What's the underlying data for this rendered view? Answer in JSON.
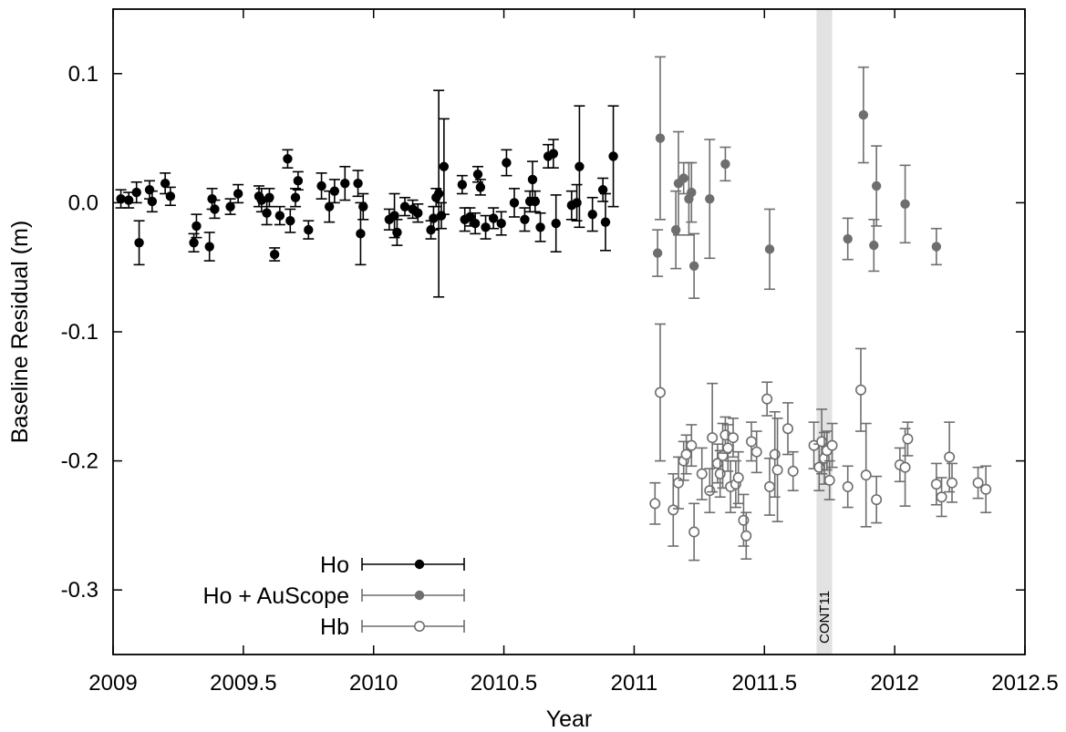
{
  "chart_data": {
    "type": "scatter",
    "xlabel": "Year",
    "ylabel": "Baseline Residual (m)",
    "xlim": [
      2009,
      2012.5
    ],
    "ylim": [
      -0.35,
      0.15
    ],
    "x_ticks": [
      2009,
      2009.5,
      2010,
      2010.5,
      2011,
      2011.5,
      2012,
      2012.5
    ],
    "x_tick_labels": [
      "2009",
      "2009.5",
      "2010",
      "2010.5",
      "2011",
      "2011.5",
      "2012",
      "2012.5"
    ],
    "y_ticks": [
      0.1,
      0.0,
      -0.1,
      -0.2,
      -0.3
    ],
    "y_tick_labels": [
      "0.1",
      "0.0",
      "-0.1",
      "-0.2",
      "-0.3"
    ],
    "legend_position": "bottom-left",
    "annotation": {
      "label": "CONT11",
      "x_range": [
        2011.7,
        2011.76
      ],
      "color": "#e2e2e2"
    },
    "series": [
      {
        "name": "Ho",
        "marker": "filled-circle",
        "color": "#000000",
        "points": [
          [
            2009.03,
            0.003,
            0.007
          ],
          [
            2009.06,
            0.002,
            0.006
          ],
          [
            2009.09,
            0.008,
            0.008
          ],
          [
            2009.1,
            -0.031,
            0.017
          ],
          [
            2009.14,
            0.01,
            0.007
          ],
          [
            2009.15,
            0.001,
            0.008
          ],
          [
            2009.2,
            0.015,
            0.008
          ],
          [
            2009.22,
            0.005,
            0.007
          ],
          [
            2009.31,
            -0.031,
            0.007
          ],
          [
            2009.32,
            -0.018,
            0.009
          ],
          [
            2009.37,
            -0.034,
            0.011
          ],
          [
            2009.38,
            0.003,
            0.008
          ],
          [
            2009.39,
            -0.005,
            0.007
          ],
          [
            2009.45,
            -0.003,
            0.006
          ],
          [
            2009.48,
            0.007,
            0.007
          ],
          [
            2009.56,
            0.005,
            0.008
          ],
          [
            2009.57,
            0.002,
            0.009
          ],
          [
            2009.59,
            -0.008,
            0.009
          ],
          [
            2009.6,
            0.004,
            0.007
          ],
          [
            2009.62,
            -0.04,
            0.005
          ],
          [
            2009.64,
            -0.01,
            0.007
          ],
          [
            2009.67,
            0.034,
            0.007
          ],
          [
            2009.68,
            -0.014,
            0.009
          ],
          [
            2009.7,
            0.004,
            0.007
          ],
          [
            2009.71,
            0.017,
            0.007
          ],
          [
            2009.75,
            -0.021,
            0.007
          ],
          [
            2009.8,
            0.013,
            0.01
          ],
          [
            2009.83,
            -0.003,
            0.012
          ],
          [
            2009.85,
            0.009,
            0.009
          ],
          [
            2009.89,
            0.015,
            0.013
          ],
          [
            2009.94,
            0.015,
            0.01
          ],
          [
            2009.95,
            -0.024,
            0.024
          ],
          [
            2009.96,
            -0.003,
            0.01
          ],
          [
            2010.06,
            -0.013,
            0.008
          ],
          [
            2010.08,
            -0.01,
            0.017
          ],
          [
            2010.09,
            -0.023,
            0.01
          ],
          [
            2010.12,
            -0.003,
            0.007
          ],
          [
            2010.15,
            -0.005,
            0.007
          ],
          [
            2010.17,
            -0.008,
            0.007
          ],
          [
            2010.22,
            -0.021,
            0.007
          ],
          [
            2010.23,
            -0.012,
            0.009
          ],
          [
            2010.24,
            0.004,
            0.007
          ],
          [
            2010.25,
            0.007,
            0.08
          ],
          [
            2010.26,
            -0.01,
            0.01
          ],
          [
            2010.27,
            0.028,
            0.037
          ],
          [
            2010.34,
            0.014,
            0.007
          ],
          [
            2010.35,
            -0.013,
            0.009
          ],
          [
            2010.37,
            -0.011,
            0.007
          ],
          [
            2010.39,
            -0.016,
            0.008
          ],
          [
            2010.4,
            0.022,
            0.006
          ],
          [
            2010.41,
            0.012,
            0.006
          ],
          [
            2010.43,
            -0.019,
            0.009
          ],
          [
            2010.46,
            -0.012,
            0.008
          ],
          [
            2010.49,
            -0.016,
            0.009
          ],
          [
            2010.51,
            0.031,
            0.01
          ],
          [
            2010.54,
            0.0,
            0.011
          ],
          [
            2010.58,
            -0.013,
            0.009
          ],
          [
            2010.6,
            0.001,
            0.008
          ],
          [
            2010.61,
            0.018,
            0.014
          ],
          [
            2010.62,
            0.001,
            0.008
          ],
          [
            2010.64,
            -0.019,
            0.011
          ],
          [
            2010.67,
            0.036,
            0.009
          ],
          [
            2010.69,
            0.038,
            0.011
          ],
          [
            2010.7,
            -0.016,
            0.022
          ],
          [
            2010.76,
            -0.002,
            0.011
          ],
          [
            2010.78,
            0.0,
            0.014
          ],
          [
            2010.79,
            0.028,
            0.047
          ],
          [
            2010.84,
            -0.009,
            0.013
          ],
          [
            2010.88,
            0.01,
            0.009
          ],
          [
            2010.89,
            -0.015,
            0.022
          ],
          [
            2010.92,
            0.036,
            0.039
          ]
        ]
      },
      {
        "name": "Ho + AuScope",
        "marker": "filled-circle",
        "color": "#6e6e6e",
        "points": [
          [
            2011.09,
            -0.039,
            0.018
          ],
          [
            2011.1,
            0.05,
            0.063
          ],
          [
            2011.16,
            -0.021,
            0.03
          ],
          [
            2011.17,
            0.015,
            0.04
          ],
          [
            2011.19,
            0.019,
            0.012
          ],
          [
            2011.21,
            0.003,
            0.028
          ],
          [
            2011.22,
            0.008,
            0.023
          ],
          [
            2011.23,
            -0.049,
            0.025
          ],
          [
            2011.29,
            0.003,
            0.046
          ],
          [
            2011.35,
            0.03,
            0.013
          ],
          [
            2011.52,
            -0.036,
            0.031
          ],
          [
            2011.82,
            -0.028,
            0.016
          ],
          [
            2011.88,
            0.068,
            0.037
          ],
          [
            2011.92,
            -0.033,
            0.02
          ],
          [
            2011.93,
            0.013,
            0.031
          ],
          [
            2012.04,
            -0.001,
            0.03
          ],
          [
            2012.16,
            -0.034,
            0.014
          ]
        ]
      },
      {
        "name": "Hb",
        "marker": "open-circle",
        "color": "#6e6e6e",
        "points": [
          [
            2011.08,
            -0.233,
            0.016
          ],
          [
            2011.1,
            -0.147,
            0.053
          ],
          [
            2011.15,
            -0.238,
            0.028
          ],
          [
            2011.17,
            -0.217,
            0.02
          ],
          [
            2011.19,
            -0.2,
            0.015
          ],
          [
            2011.2,
            -0.195,
            0.015
          ],
          [
            2011.22,
            -0.188,
            0.016
          ],
          [
            2011.23,
            -0.255,
            0.022
          ],
          [
            2011.26,
            -0.21,
            0.02
          ],
          [
            2011.29,
            -0.223,
            0.017
          ],
          [
            2011.3,
            -0.182,
            0.042
          ],
          [
            2011.32,
            -0.202,
            0.015
          ],
          [
            2011.33,
            -0.21,
            0.018
          ],
          [
            2011.34,
            -0.196,
            0.025
          ],
          [
            2011.35,
            -0.18,
            0.014
          ],
          [
            2011.36,
            -0.19,
            0.018
          ],
          [
            2011.37,
            -0.22,
            0.02
          ],
          [
            2011.38,
            -0.182,
            0.015
          ],
          [
            2011.39,
            -0.218,
            0.018
          ],
          [
            2011.4,
            -0.213,
            0.02
          ],
          [
            2011.42,
            -0.246,
            0.02
          ],
          [
            2011.43,
            -0.258,
            0.018
          ],
          [
            2011.45,
            -0.185,
            0.015
          ],
          [
            2011.47,
            -0.193,
            0.016
          ],
          [
            2011.51,
            -0.152,
            0.013
          ],
          [
            2011.52,
            -0.22,
            0.022
          ],
          [
            2011.54,
            -0.195,
            0.033
          ],
          [
            2011.55,
            -0.207,
            0.04
          ],
          [
            2011.59,
            -0.175,
            0.02
          ],
          [
            2011.61,
            -0.208,
            0.015
          ],
          [
            2011.69,
            -0.188,
            0.018
          ],
          [
            2011.71,
            -0.205,
            0.018
          ],
          [
            2011.72,
            -0.185,
            0.025
          ],
          [
            2011.73,
            -0.198,
            0.02
          ],
          [
            2011.74,
            -0.192,
            0.015
          ],
          [
            2011.75,
            -0.215,
            0.015
          ],
          [
            2011.76,
            -0.188,
            0.017
          ],
          [
            2011.82,
            -0.22,
            0.016
          ],
          [
            2011.87,
            -0.145,
            0.032
          ],
          [
            2011.89,
            -0.211,
            0.04
          ],
          [
            2011.93,
            -0.23,
            0.018
          ],
          [
            2012.02,
            -0.203,
            0.013
          ],
          [
            2012.04,
            -0.205,
            0.03
          ],
          [
            2012.05,
            -0.183,
            0.013
          ],
          [
            2012.16,
            -0.218,
            0.016
          ],
          [
            2012.18,
            -0.228,
            0.015
          ],
          [
            2012.21,
            -0.197,
            0.027
          ],
          [
            2012.22,
            -0.217,
            0.015
          ],
          [
            2012.32,
            -0.217,
            0.012
          ],
          [
            2012.35,
            -0.222,
            0.018
          ]
        ]
      }
    ]
  }
}
